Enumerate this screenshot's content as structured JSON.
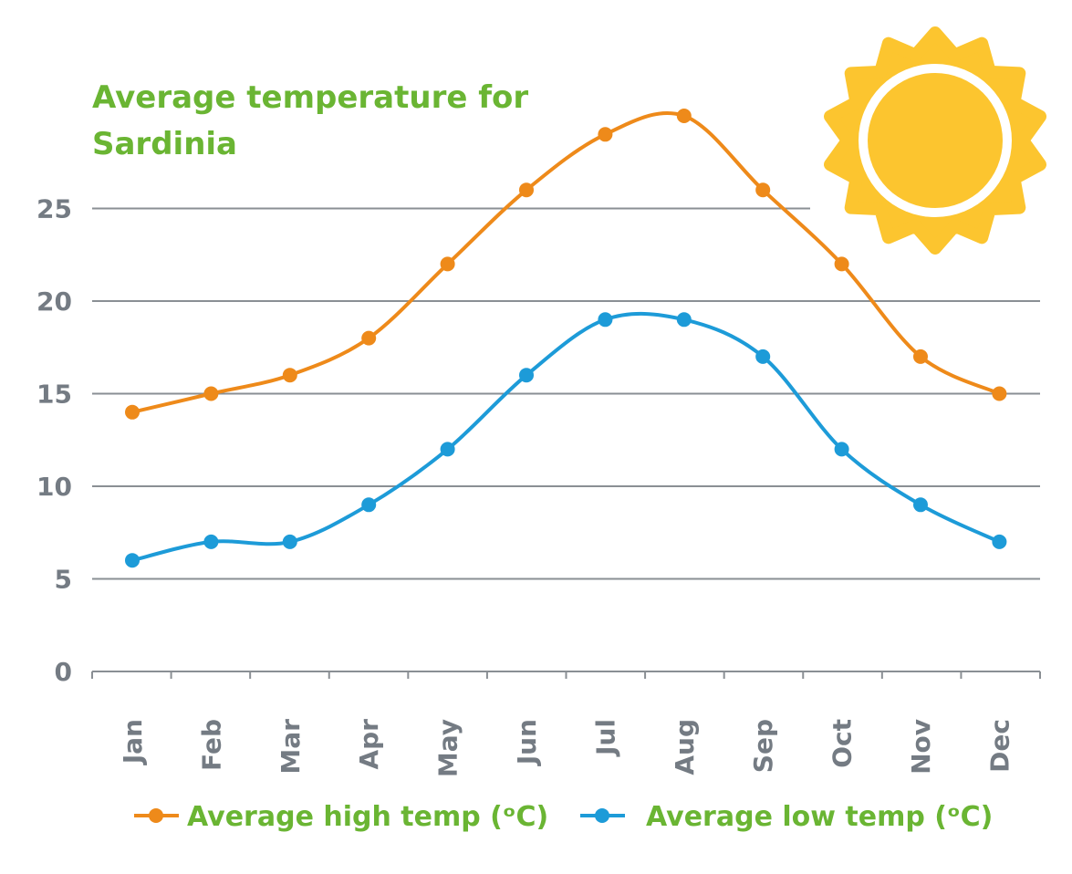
{
  "chart_data": {
    "type": "line",
    "title_lines": [
      "Average temperature for",
      "Sardinia"
    ],
    "categories": [
      "Jan",
      "Feb",
      "Mar",
      "Apr",
      "May",
      "Jun",
      "Jul",
      "Aug",
      "Sep",
      "Oct",
      "Nov",
      "Dec"
    ],
    "series": [
      {
        "name": "Average high temp (ᵒC)",
        "color": "#ee8a1a",
        "values": [
          14,
          15,
          16,
          18,
          22,
          26,
          29,
          30,
          26,
          22,
          17,
          15
        ]
      },
      {
        "name": "Average low temp (ᵒC)",
        "color": "#1d9bd8",
        "values": [
          6,
          7,
          7,
          9,
          12,
          16,
          19,
          19,
          17,
          12,
          9,
          7
        ]
      }
    ],
    "yticks": [
      0,
      5,
      10,
      15,
      20,
      25
    ],
    "ylim": [
      0,
      30
    ],
    "grid": true,
    "legend_position": "bottom",
    "sun_colors": {
      "rays": "#fcc52f",
      "ring": "#ffffff",
      "core": "#fcc52f"
    }
  }
}
